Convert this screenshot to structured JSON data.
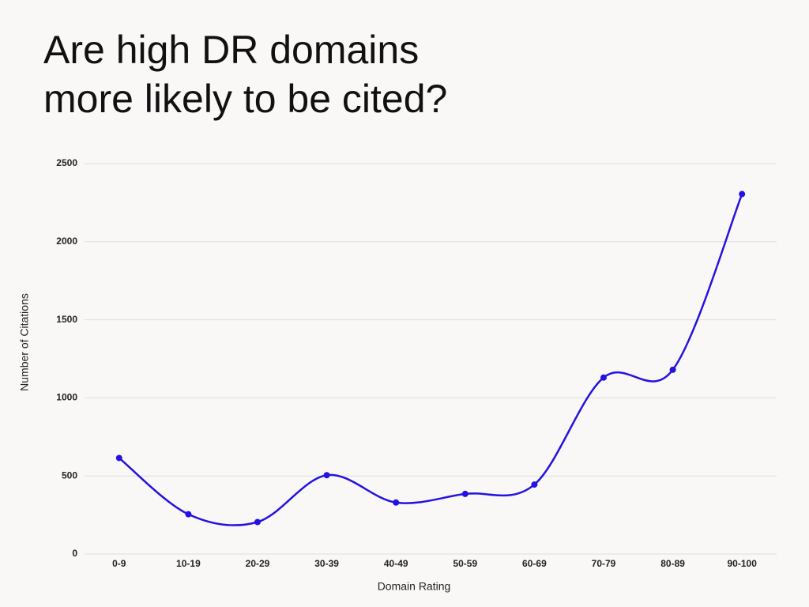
{
  "chart_data": {
    "type": "line",
    "title": "Are high DR domains more likely to be cited?",
    "x_label": "Domain Rating",
    "y_label": "Number of Citations",
    "categories": [
      "0-9",
      "10-19",
      "20-29",
      "30-39",
      "40-49",
      "50-59",
      "60-69",
      "70-79",
      "80-89",
      "90-100"
    ],
    "series": [
      {
        "name": "Citations",
        "color": "#2413e0",
        "values": [
          615,
          255,
          205,
          505,
          330,
          385,
          445,
          1130,
          1180,
          2305
        ]
      }
    ],
    "ylim": [
      0,
      2500
    ],
    "yticks": [
      0,
      500,
      1000,
      1500,
      2000,
      2500
    ],
    "grid": true,
    "smooth": true
  }
}
